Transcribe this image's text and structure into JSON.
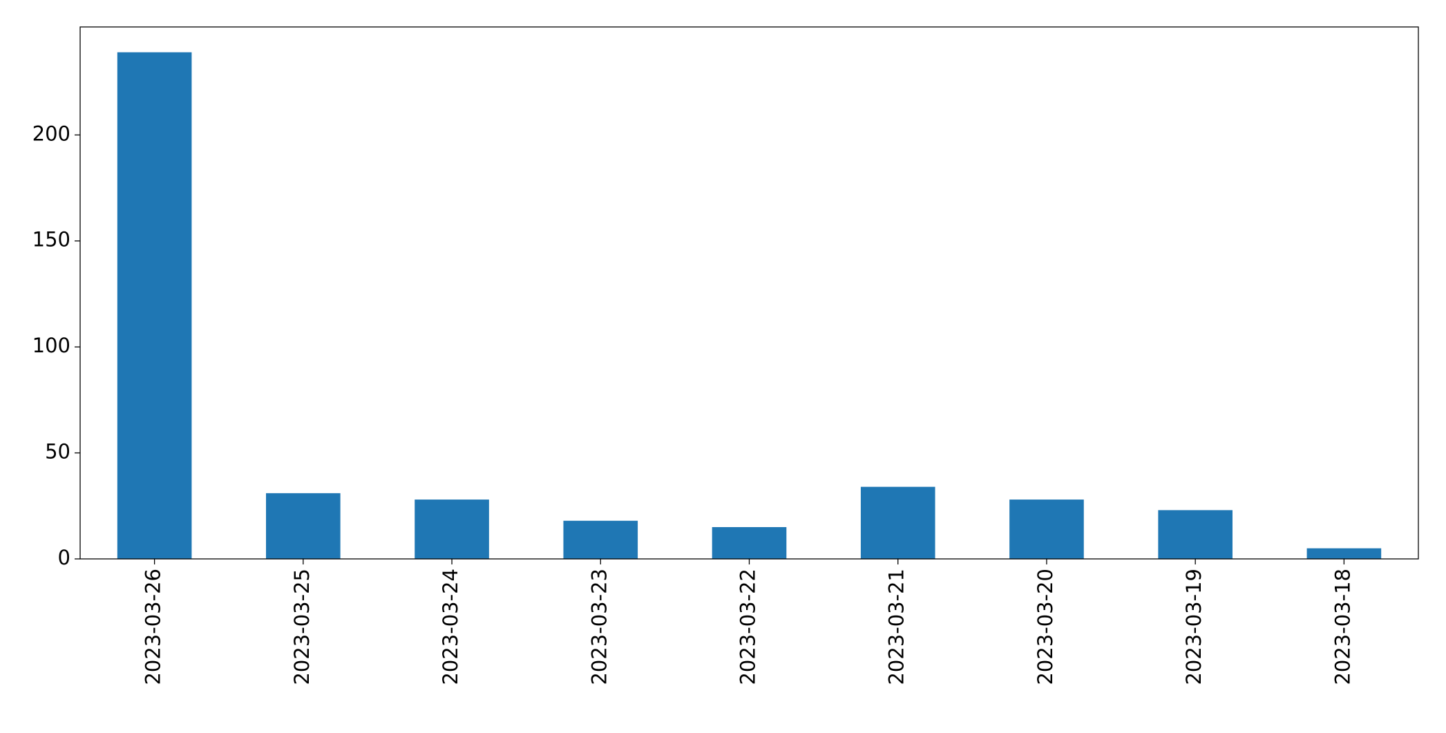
{
  "chart_data": {
    "type": "bar",
    "categories": [
      "2023-03-26",
      "2023-03-25",
      "2023-03-24",
      "2023-03-23",
      "2023-03-22",
      "2023-03-21",
      "2023-03-20",
      "2023-03-19",
      "2023-03-18"
    ],
    "values": [
      239,
      31,
      28,
      18,
      15,
      34,
      28,
      23,
      5
    ],
    "color": "#1f77b4",
    "ylim": [
      0,
      250.95
    ],
    "yticks": [
      0,
      50,
      100,
      150,
      200
    ],
    "grid": false
  }
}
